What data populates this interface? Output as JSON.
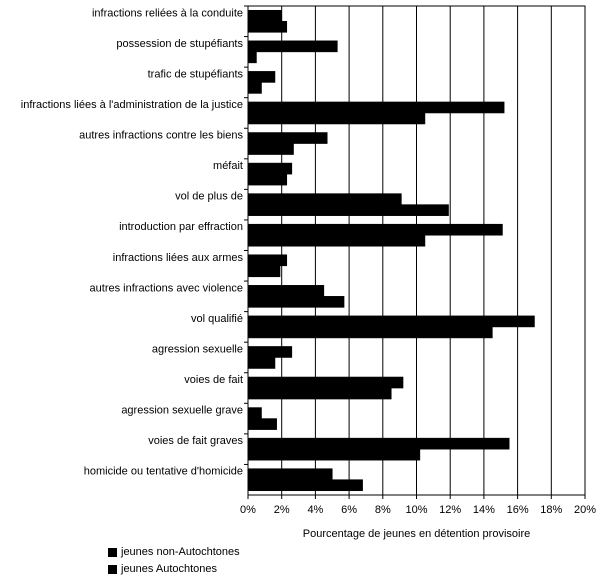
{
  "chart_data": {
    "type": "bar",
    "orientation": "horizontal",
    "categories": [
      "infractions reliées à la conduite",
      "possession de stupéfiants",
      "trafic de stupéfiants",
      "infractions liées à l'administration de la justice",
      "autres infractions contre les biens",
      "méfait",
      "vol de plus de",
      "introduction par effraction",
      "infractions liées aux armes",
      "autres infractions avec violence",
      "vol qualifié",
      "agression sexuelle",
      "voies de fait",
      "agression sexuelle grave",
      "voies de fait graves",
      "homicide ou tentative d'homicide"
    ],
    "series": [
      {
        "name": "jeunes non-Autochtones",
        "values": [
          2.0,
          5.3,
          1.6,
          15.2,
          4.7,
          2.6,
          9.1,
          15.1,
          2.3,
          4.5,
          17.0,
          2.6,
          9.2,
          0.8,
          15.5,
          5.0
        ],
        "color": "#000000"
      },
      {
        "name": "jeunes Autochtones",
        "values": [
          2.3,
          0.5,
          0.8,
          10.5,
          2.7,
          2.3,
          11.9,
          10.5,
          1.9,
          5.7,
          14.5,
          1.6,
          8.5,
          1.7,
          10.2,
          6.8
        ],
        "color": "#000000"
      }
    ],
    "xlabel": "Pourcentage de jeunes en détention provisoire",
    "ylabel": "",
    "xlim": [
      0,
      20
    ],
    "xticks": [
      "0%",
      "2%",
      "4%",
      "6%",
      "8%",
      "10%",
      "12%",
      "14%",
      "16%",
      "18%",
      "20%"
    ],
    "grid": "vertical",
    "legend_position": "bottom-left"
  }
}
